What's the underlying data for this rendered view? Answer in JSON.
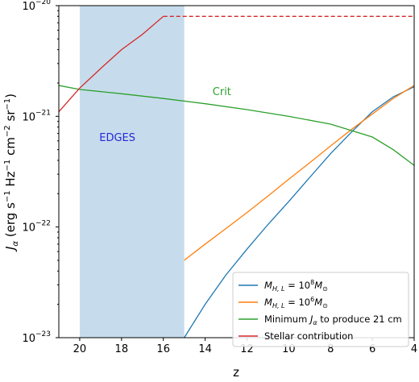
{
  "chart_data": {
    "type": "line",
    "xlabel": "z",
    "ylabel": "J_α (erg s⁻¹ Hz⁻¹ cm⁻² sr⁻¹)",
    "xlim": [
      21,
      4
    ],
    "ylim": [
      1e-23,
      1e-20
    ],
    "y_scale": "log",
    "x_ticks": [
      20,
      18,
      16,
      14,
      12,
      10,
      8,
      6,
      4
    ],
    "y_ticks": [
      {
        "value": 1e-23,
        "base": "10",
        "exp": "−23"
      },
      {
        "value": 1e-22,
        "base": "10",
        "exp": "−22"
      },
      {
        "value": 1e-21,
        "base": "10",
        "exp": "−21"
      },
      {
        "value": 1e-20,
        "base": "10",
        "exp": "−20"
      }
    ],
    "grid": false,
    "legend_position": "lower-right",
    "shaded_region": {
      "x_range": [
        20,
        15
      ],
      "y_range": [
        1e-23,
        1e-20
      ],
      "color": "#c6dcec"
    },
    "annotations": [
      {
        "text": "Crit",
        "x": 13.2,
        "y": 1.55e-21,
        "color": "#2ca02c"
      },
      {
        "text": "EDGES",
        "x": 18.2,
        "y": 6e-22,
        "color": "#2727d9"
      }
    ],
    "series": [
      {
        "name": "M_H,L = 10^8 M_⊙",
        "color": "#1f77b4",
        "style": "solid",
        "x": [
          15,
          14,
          13,
          12,
          11,
          10,
          9,
          8,
          7,
          6,
          5,
          4
        ],
        "y": [
          1e-23,
          2e-23,
          3.7e-23,
          6.3e-23,
          1.05e-22,
          1.7e-22,
          2.8e-22,
          4.6e-22,
          7.2e-22,
          1.1e-21,
          1.5e-21,
          1.85e-21
        ]
      },
      {
        "name": "M_H,L = 10^6 M_⊙",
        "color": "#ff7f0e",
        "style": "solid",
        "x": [
          15,
          14,
          13,
          12,
          11,
          10,
          9,
          8,
          7,
          6,
          5,
          4
        ],
        "y": [
          5e-23,
          7e-23,
          9.7e-23,
          1.35e-22,
          1.9e-22,
          2.7e-22,
          3.8e-22,
          5.4e-22,
          7.6e-22,
          1.05e-21,
          1.45e-21,
          1.9e-21
        ]
      },
      {
        "name": "Minimum J_α to produce 21 cm",
        "color": "#2ca02c",
        "style": "solid",
        "x": [
          21,
          20,
          18,
          16,
          14,
          12,
          10,
          8,
          6,
          5,
          4
        ],
        "y": [
          1.9e-21,
          1.75e-21,
          1.6e-21,
          1.45e-21,
          1.3e-21,
          1.15e-21,
          1e-21,
          8.5e-22,
          6.5e-22,
          5e-22,
          3.6e-22
        ]
      },
      {
        "name": "Stellar contribution",
        "color": "#d62728",
        "style": "solid",
        "x": [
          21,
          20,
          19,
          18,
          17,
          16
        ],
        "y": [
          1.1e-21,
          1.8e-21,
          2.7e-21,
          4e-21,
          5.5e-21,
          8e-21
        ]
      },
      {
        "name": "",
        "color": "#d62728",
        "style": "dashed",
        "x": [
          16,
          4
        ],
        "y": [
          8e-21,
          8e-21
        ]
      }
    ],
    "legend": [
      {
        "prefix": "M",
        "sub": "H, L",
        "mid": " = 10",
        "sup": "8",
        "m": "M",
        "msub": "⊙",
        "color": "#1f77b4"
      },
      {
        "prefix": "M",
        "sub": "H, L",
        "mid": " = 10",
        "sup": "6",
        "m": "M",
        "msub": "⊙",
        "color": "#ff7f0e"
      },
      {
        "plain_a": "Minimum ",
        "j": "J",
        "jsub": "α",
        "plain_b": " to produce 21 cm",
        "color": "#2ca02c"
      },
      {
        "plain": "Stellar contribution",
        "color": "#d62728"
      }
    ]
  }
}
